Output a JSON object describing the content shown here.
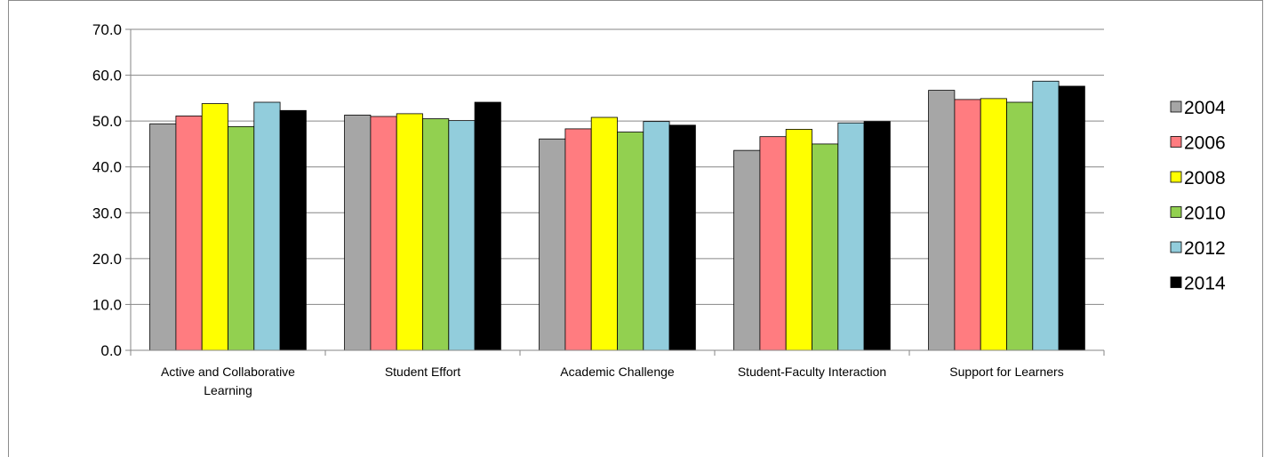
{
  "chart_data": {
    "type": "bar",
    "categories": [
      [
        "Active and Collaborative",
        "Learning"
      ],
      [
        "Student Effort"
      ],
      [
        "Academic Challenge"
      ],
      [
        "Student-Faculty Interaction"
      ],
      [
        "Support for Learners"
      ]
    ],
    "series": [
      {
        "name": "2004",
        "color": "#a6a6a6",
        "values": [
          49.4,
          51.3,
          46.1,
          43.6,
          56.7
        ]
      },
      {
        "name": "2006",
        "color": "#ff7c80",
        "values": [
          51.1,
          51.0,
          48.3,
          46.6,
          54.7
        ]
      },
      {
        "name": "2008",
        "color": "#ffff00",
        "values": [
          53.8,
          51.6,
          50.8,
          48.2,
          54.9
        ]
      },
      {
        "name": "2010",
        "color": "#92d050",
        "values": [
          48.8,
          50.5,
          47.6,
          45.0,
          54.1
        ]
      },
      {
        "name": "2012",
        "color": "#92cddc",
        "values": [
          54.1,
          50.1,
          49.9,
          49.6,
          58.7
        ]
      },
      {
        "name": "2014",
        "color": "#000000",
        "values": [
          52.3,
          54.1,
          49.1,
          49.9,
          57.6
        ]
      }
    ],
    "yticks": [
      "0.0",
      "10.0",
      "20.0",
      "30.0",
      "40.0",
      "50.0",
      "60.0",
      "70.0"
    ],
    "ylim": [
      0,
      70
    ],
    "grid": true,
    "legend_position": "right",
    "title": "",
    "xlabel": "",
    "ylabel": ""
  }
}
